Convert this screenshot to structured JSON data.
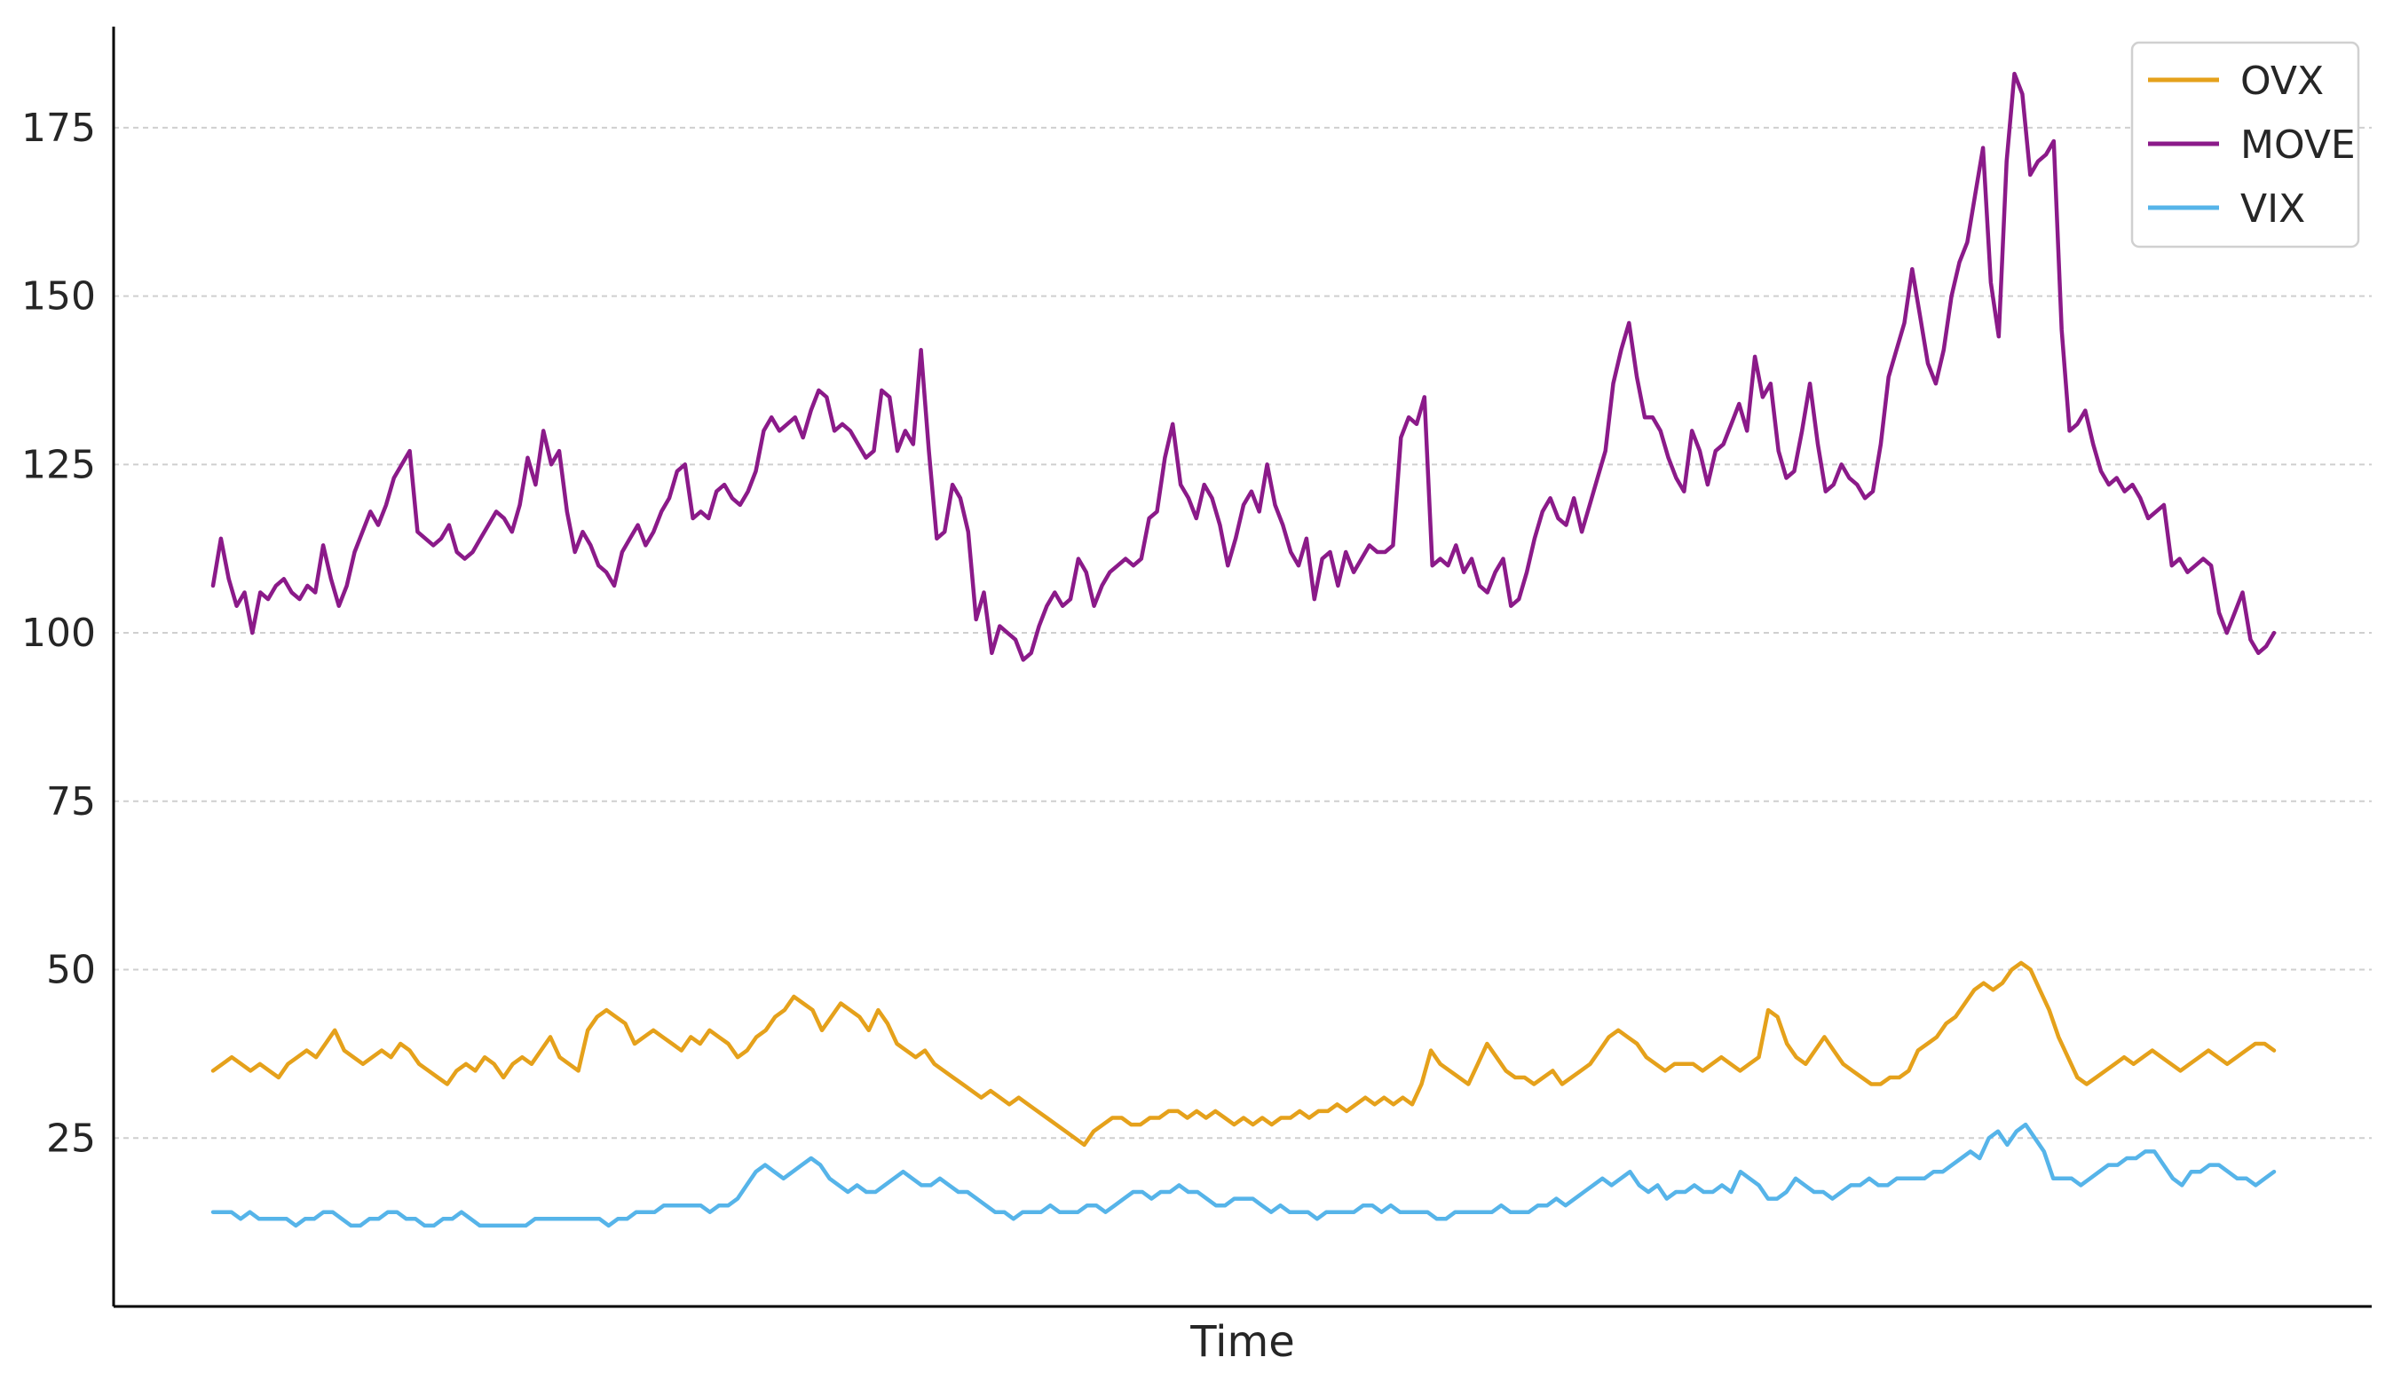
{
  "chart_data": {
    "type": "line",
    "title": "",
    "xlabel": "Time",
    "ylabel": "",
    "ylim": [
      0,
      190
    ],
    "yticks": [
      25,
      50,
      75,
      100,
      125,
      150,
      175
    ],
    "grid": "horizontal dashed",
    "legend": "top-right",
    "series": [
      {
        "name": "OVX",
        "color": "#E5A11B",
        "values": [
          35,
          36,
          37,
          36,
          35,
          36,
          35,
          34,
          36,
          37,
          38,
          37,
          39,
          41,
          38,
          37,
          36,
          37,
          38,
          37,
          39,
          38,
          36,
          35,
          34,
          33,
          35,
          36,
          35,
          37,
          36,
          34,
          36,
          37,
          36,
          38,
          40,
          37,
          36,
          35,
          41,
          43,
          44,
          43,
          42,
          39,
          40,
          41,
          40,
          39,
          38,
          40,
          39,
          41,
          40,
          39,
          37,
          38,
          40,
          41,
          43,
          44,
          46,
          45,
          44,
          41,
          43,
          45,
          44,
          43,
          41,
          44,
          42,
          39,
          38,
          37,
          38,
          36,
          35,
          34,
          33,
          32,
          31,
          32,
          31,
          30,
          31,
          30,
          29,
          28,
          27,
          26,
          25,
          24,
          26,
          27,
          28,
          28,
          27,
          27,
          28,
          28,
          29,
          29,
          28,
          29,
          28,
          29,
          28,
          27,
          28,
          27,
          28,
          27,
          28,
          28,
          29,
          28,
          29,
          29,
          30,
          29,
          30,
          31,
          30,
          31,
          30,
          31,
          30,
          33,
          38,
          36,
          35,
          34,
          33,
          36,
          39,
          37,
          35,
          34,
          34,
          33,
          34,
          35,
          33,
          34,
          35,
          36,
          38,
          40,
          41,
          40,
          39,
          37,
          36,
          35,
          36,
          36,
          36,
          35,
          36,
          37,
          36,
          35,
          36,
          37,
          44,
          43,
          39,
          37,
          36,
          38,
          40,
          38,
          36,
          35,
          34,
          33,
          33,
          34,
          34,
          35,
          38,
          39,
          40,
          42,
          43,
          45,
          47,
          48,
          47,
          48,
          50,
          51,
          50,
          47,
          44,
          40,
          37,
          34,
          33,
          34,
          35,
          36,
          37,
          36,
          37,
          38,
          37,
          36,
          35,
          36,
          37,
          38,
          37,
          36,
          37,
          38,
          39,
          39,
          38
        ]
      },
      {
        "name": "MOVE",
        "color": "#8B1A89",
        "values": [
          107,
          114,
          108,
          104,
          106,
          100,
          106,
          105,
          107,
          108,
          106,
          105,
          107,
          106,
          113,
          108,
          104,
          107,
          112,
          115,
          118,
          116,
          119,
          123,
          125,
          127,
          115,
          114,
          113,
          114,
          116,
          112,
          111,
          112,
          114,
          116,
          118,
          117,
          115,
          119,
          126,
          122,
          130,
          125,
          127,
          118,
          112,
          115,
          113,
          110,
          109,
          107,
          112,
          114,
          116,
          113,
          115,
          118,
          120,
          124,
          125,
          117,
          118,
          117,
          121,
          122,
          120,
          119,
          121,
          124,
          130,
          132,
          130,
          131,
          132,
          129,
          133,
          136,
          135,
          130,
          131,
          130,
          128,
          126,
          127,
          136,
          135,
          127,
          130,
          128,
          142,
          127,
          114,
          115,
          122,
          120,
          115,
          102,
          106,
          97,
          101,
          100,
          99,
          96,
          97,
          101,
          104,
          106,
          104,
          105,
          111,
          109,
          104,
          107,
          109,
          110,
          111,
          110,
          111,
          117,
          118,
          126,
          131,
          122,
          120,
          117,
          122,
          120,
          116,
          110,
          114,
          119,
          121,
          118,
          125,
          119,
          116,
          112,
          110,
          114,
          105,
          111,
          112,
          107,
          112,
          109,
          111,
          113,
          112,
          112,
          113,
          129,
          132,
          131,
          135,
          110,
          111,
          110,
          113,
          109,
          111,
          107,
          106,
          109,
          111,
          104,
          105,
          109,
          114,
          118,
          120,
          117,
          116,
          120,
          115,
          119,
          123,
          127,
          137,
          142,
          146,
          138,
          132,
          132,
          130,
          126,
          123,
          121,
          130,
          127,
          122,
          127,
          128,
          131,
          134,
          130,
          141,
          135,
          137,
          127,
          123,
          124,
          130,
          137,
          128,
          121,
          122,
          125,
          123,
          122,
          120,
          121,
          128,
          138,
          142,
          146,
          154,
          147,
          140,
          137,
          142,
          150,
          155,
          158,
          165,
          172,
          152,
          144,
          170,
          183,
          180,
          168,
          170,
          171,
          173,
          145,
          130,
          131,
          133,
          128,
          124,
          122,
          123,
          121,
          122,
          120,
          117,
          118,
          119,
          110,
          111,
          109,
          110,
          111,
          110,
          103,
          100,
          103,
          106,
          99,
          97,
          98,
          100
        ]
      },
      {
        "name": "VIX",
        "color": "#56B4E9",
        "values": [
          14,
          14,
          14,
          13,
          14,
          13,
          13,
          13,
          13,
          12,
          13,
          13,
          14,
          14,
          13,
          12,
          12,
          13,
          13,
          14,
          14,
          13,
          13,
          12,
          12,
          13,
          13,
          14,
          13,
          12,
          12,
          12,
          12,
          12,
          12,
          13,
          13,
          13,
          13,
          13,
          13,
          13,
          13,
          12,
          13,
          13,
          14,
          14,
          14,
          15,
          15,
          15,
          15,
          15,
          14,
          15,
          15,
          16,
          18,
          20,
          21,
          20,
          19,
          20,
          21,
          22,
          21,
          19,
          18,
          17,
          18,
          17,
          17,
          18,
          19,
          20,
          19,
          18,
          18,
          19,
          18,
          17,
          17,
          16,
          15,
          14,
          14,
          13,
          14,
          14,
          14,
          15,
          14,
          14,
          14,
          15,
          15,
          14,
          15,
          16,
          17,
          17,
          16,
          17,
          17,
          18,
          17,
          17,
          16,
          15,
          15,
          16,
          16,
          16,
          15,
          14,
          15,
          14,
          14,
          14,
          13,
          14,
          14,
          14,
          14,
          15,
          15,
          14,
          15,
          14,
          14,
          14,
          14,
          13,
          13,
          14,
          14,
          14,
          14,
          14,
          15,
          14,
          14,
          14,
          15,
          15,
          16,
          15,
          16,
          17,
          18,
          19,
          18,
          19,
          20,
          18,
          17,
          18,
          16,
          17,
          17,
          18,
          17,
          17,
          18,
          17,
          20,
          19,
          18,
          16,
          16,
          17,
          19,
          18,
          17,
          17,
          16,
          17,
          18,
          18,
          19,
          18,
          18,
          19,
          19,
          19,
          19,
          20,
          20,
          21,
          22,
          23,
          22,
          25,
          26,
          24,
          26,
          27,
          25,
          23,
          19,
          19,
          19,
          18,
          19,
          20,
          21,
          21,
          22,
          22,
          23,
          23,
          21,
          19,
          18,
          20,
          20,
          21,
          21,
          20,
          19,
          19,
          18,
          19,
          20
        ]
      }
    ]
  }
}
